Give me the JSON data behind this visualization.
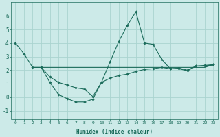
{
  "xlabel": "Humidex (Indice chaleur)",
  "bg_color": "#cceae8",
  "grid_color": "#aad4d0",
  "line_color": "#1a6b5a",
  "x_ticks": [
    0,
    1,
    2,
    3,
    4,
    5,
    6,
    7,
    8,
    9,
    10,
    11,
    12,
    13,
    14,
    15,
    16,
    17,
    18,
    19,
    20,
    21,
    22,
    23
  ],
  "ylim": [
    -1.6,
    7.0
  ],
  "yticks": [
    -1,
    0,
    1,
    2,
    3,
    4,
    5,
    6
  ],
  "line1_x": [
    0,
    1,
    2,
    3,
    4,
    5,
    6,
    7,
    8,
    9,
    10,
    11,
    12,
    13,
    14,
    15,
    16,
    17,
    18,
    19,
    20,
    21,
    22,
    23
  ],
  "line1_y": [
    4.0,
    3.2,
    2.2,
    2.2,
    1.1,
    0.2,
    -0.1,
    -0.35,
    -0.35,
    -0.15,
    1.1,
    2.6,
    4.1,
    5.3,
    6.3,
    4.0,
    3.9,
    2.8,
    2.1,
    2.1,
    1.95,
    2.3,
    2.3,
    2.4
  ],
  "line2_x": [
    2,
    3,
    4,
    5,
    6,
    7,
    8,
    9,
    10,
    11,
    12,
    13,
    14,
    15,
    16,
    17,
    18,
    19,
    20,
    21,
    22,
    23
  ],
  "line2_y": [
    2.2,
    2.2,
    2.2,
    2.2,
    2.2,
    2.2,
    2.2,
    2.2,
    2.2,
    2.2,
    2.2,
    2.2,
    2.2,
    2.2,
    2.2,
    2.2,
    2.2,
    2.2,
    2.2,
    2.2,
    2.2,
    2.4
  ],
  "line3_x": [
    3,
    4,
    5,
    6,
    7,
    8,
    9,
    10,
    11,
    12,
    13,
    14,
    15,
    16,
    17,
    18,
    19,
    20,
    21,
    22,
    23
  ],
  "line3_y": [
    2.2,
    1.5,
    1.1,
    0.9,
    0.7,
    0.6,
    0.05,
    1.1,
    1.4,
    1.6,
    1.7,
    1.9,
    2.05,
    2.1,
    2.2,
    2.1,
    2.15,
    2.0,
    2.3,
    2.35,
    2.4
  ]
}
